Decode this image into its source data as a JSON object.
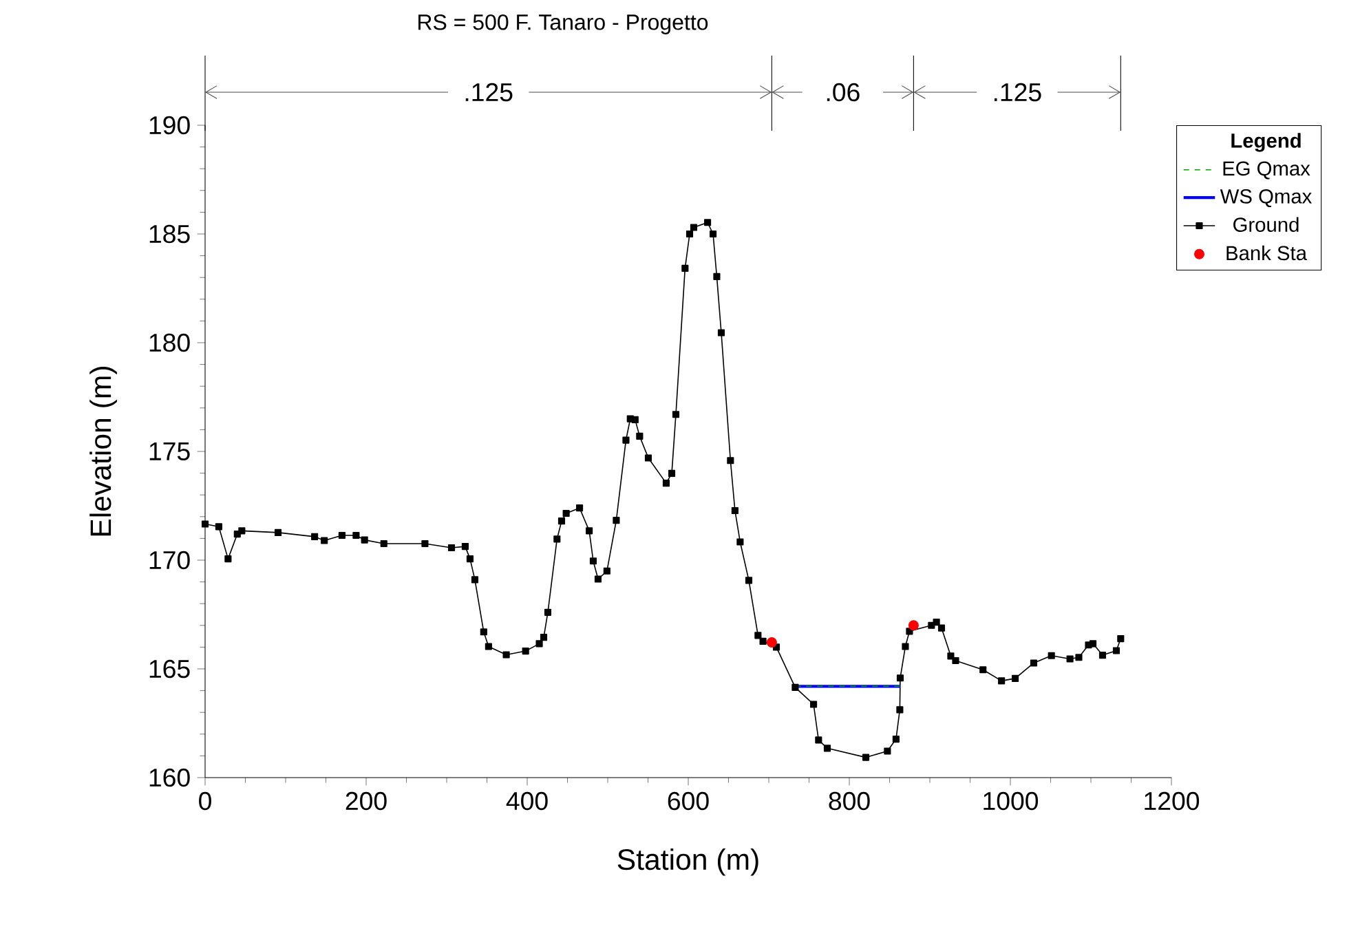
{
  "chart_data": {
    "type": "line",
    "title": "RS = 500  F. Tanaro - Progetto",
    "xlabel": "Station (m)",
    "ylabel": "Elevation (m)",
    "legend_title": "Legend",
    "xlim": [
      0,
      1200
    ],
    "ylim": [
      160,
      190
    ],
    "xticks": [
      0,
      200,
      400,
      600,
      800,
      1000,
      1200
    ],
    "yticks": [
      160,
      165,
      170,
      175,
      180,
      185,
      190
    ],
    "legend": "right",
    "grid": false,
    "annotations": [
      ".125",
      ".06",
      ".125"
    ],
    "series": [
      {
        "name": "EG Qmax",
        "color": "#00a000",
        "line_style": "dashed",
        "marker": "none",
        "x": [
          732.8,
          863.2
        ],
        "values": [
          164.2,
          164.2
        ]
      },
      {
        "name": "WS Qmax",
        "color": "#0000ff",
        "line_style": "solid",
        "marker": "none",
        "x": [
          732.8,
          863.2
        ],
        "values": [
          164.2,
          164.2
        ]
      },
      {
        "name": "Ground",
        "color": "#000000",
        "line_style": "solid",
        "marker": "square",
        "x": [
          0,
          17,
          28.5,
          40,
          45.6,
          90.6,
          136,
          148,
          170,
          187.5,
          198,
          222,
          273,
          306,
          323,
          329,
          335,
          346,
          352,
          374,
          398,
          415,
          420.5,
          425.6,
          437,
          442.7,
          448.4,
          465,
          477,
          482,
          488,
          499,
          510.6,
          522.6,
          528,
          534,
          539.6,
          550.4,
          572.6,
          579.5,
          584.6,
          596,
          601.7,
          606.8,
          624,
          630.8,
          635.4,
          641,
          652.4,
          658,
          664.4,
          675.2,
          686.6,
          692.8,
          709.4,
          732.8,
          755.6,
          761.8,
          772.6,
          820.5,
          847.3,
          858,
          862.7,
          863.2,
          869.6,
          874.7,
          902,
          908.2,
          914.5,
          926,
          932,
          966,
          989,
          1006,
          1029,
          1051,
          1074,
          1085,
          1097,
          1102.6,
          1114.5,
          1131.6,
          1137
        ],
        "values": [
          171.66,
          171.54,
          170.06,
          171.2,
          171.35,
          171.27,
          171.08,
          170.9,
          171.14,
          171.14,
          170.93,
          170.76,
          170.76,
          170.57,
          170.63,
          170.06,
          169.1,
          166.7,
          166.03,
          165.65,
          165.82,
          166.16,
          166.45,
          167.6,
          170.97,
          171.8,
          172.15,
          172.4,
          171.35,
          169.96,
          169.13,
          169.5,
          171.83,
          175.52,
          176.5,
          176.46,
          175.7,
          174.7,
          173.54,
          173.99,
          176.7,
          183.42,
          185.0,
          185.3,
          185.53,
          185.0,
          183.04,
          180.46,
          174.58,
          172.28,
          170.84,
          169.07,
          166.54,
          166.27,
          166.0,
          164.15,
          163.37,
          161.73,
          161.35,
          160.93,
          161.22,
          161.77,
          163.12,
          164.58,
          166.03,
          166.73,
          167.0,
          167.15,
          166.88,
          165.59,
          165.38,
          164.96,
          164.45,
          164.56,
          165.27,
          165.61,
          165.46,
          165.53,
          166.1,
          166.16,
          165.63,
          165.84,
          166.39
        ]
      },
      {
        "name": "Bank Sta",
        "type": "scatter",
        "color": "#ff0000",
        "marker": "circle",
        "x": [
          703.7,
          879.8
        ],
        "values": [
          166.22,
          167.0
        ]
      }
    ]
  }
}
